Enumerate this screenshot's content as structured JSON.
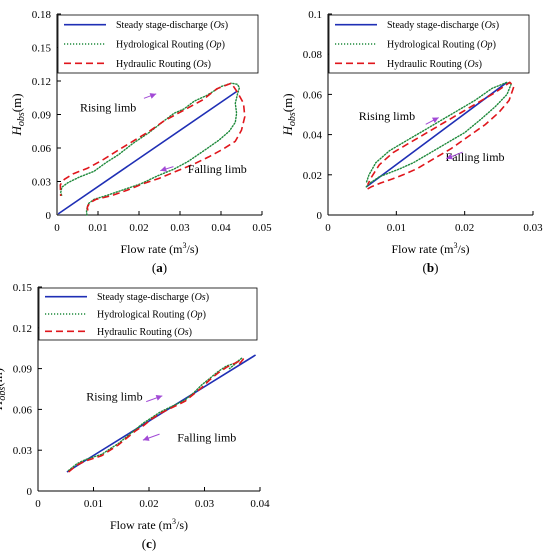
{
  "chart_data": [
    {
      "panel_label": "(a)",
      "type": "line",
      "xlabel": "Flow rate (m³/s)",
      "ylabel": "Hobs(m)",
      "xlim": [
        0,
        0.05
      ],
      "ylim": [
        0,
        0.18
      ],
      "xticks": [
        "0",
        "0.01",
        "0.02",
        "0.03",
        "0.04",
        "0.05"
      ],
      "yticks": [
        "0",
        "0.03",
        "0.06",
        "0.09",
        "0.12",
        "0.15",
        "0.18"
      ],
      "legend_position": "top-left",
      "annotations": [
        {
          "text": "Rising limb",
          "x": 0.0056,
          "y": 0.0925
        },
        {
          "text": "Falling limb",
          "x": 0.0319,
          "y": 0.0374
        },
        {
          "arrow": "up",
          "x1": 0.0212,
          "y1": 0.1045,
          "x2": 0.0242,
          "y2": 0.1085
        },
        {
          "arrow": "down",
          "x1": 0.0284,
          "y1": 0.0433,
          "x2": 0.0252,
          "y2": 0.0397
        }
      ],
      "series": [
        {
          "name": "Steady stage-discharge (Os)",
          "style": "solid",
          "color": "#1f2fb5",
          "x": [
            0.0003,
            0.044
          ],
          "y": [
            0.001,
            0.111
          ]
        },
        {
          "name": "Hydrological Routing (Op)",
          "style": "dotted",
          "color": "#1f8a3c",
          "x": [
            0.0073,
            0.0072,
            0.0076,
            0.009,
            0.0125,
            0.0165,
            0.0205,
            0.0245,
            0.0285,
            0.032,
            0.036,
            0.0395,
            0.042,
            0.0435,
            0.0438,
            0.0435,
            0.044,
            0.0445,
            0.044,
            0.0425,
            0.04,
            0.0365,
            0.0335,
            0.031,
            0.0285,
            0.026,
            0.0225,
            0.0185,
            0.015,
            0.012,
            0.009,
            0.0055,
            0.0027,
            0.0012,
            0.0009,
            0.0012
          ],
          "y": [
            0.0,
            0.004,
            0.01,
            0.014,
            0.018,
            0.023,
            0.028,
            0.035,
            0.041,
            0.048,
            0.058,
            0.067,
            0.075,
            0.083,
            0.091,
            0.1,
            0.108,
            0.114,
            0.117,
            0.118,
            0.115,
            0.107,
            0.102,
            0.095,
            0.091,
            0.084,
            0.074,
            0.064,
            0.054,
            0.047,
            0.039,
            0.034,
            0.029,
            0.025,
            0.02,
            0.017
          ]
        },
        {
          "name": "Hydraulic Routing (Os)",
          "style": "dashed",
          "color": "#e0161c",
          "x": [
            0.0075,
            0.0074,
            0.008,
            0.0095,
            0.013,
            0.017,
            0.021,
            0.025,
            0.029,
            0.033,
            0.037,
            0.0405,
            0.0435,
            0.045,
            0.0458,
            0.0455,
            0.044,
            0.0425,
            0.039,
            0.0355,
            0.032,
            0.029,
            0.026,
            0.0225,
            0.0185,
            0.0145,
            0.011,
            0.0075,
            0.004,
            0.0018,
            0.0008,
            0.0009
          ],
          "y": [
            0.004,
            0.007,
            0.011,
            0.014,
            0.017,
            0.022,
            0.028,
            0.033,
            0.039,
            0.045,
            0.052,
            0.059,
            0.066,
            0.076,
            0.088,
            0.1,
            0.11,
            0.118,
            0.113,
            0.103,
            0.096,
            0.09,
            0.084,
            0.075,
            0.066,
            0.057,
            0.049,
            0.042,
            0.037,
            0.032,
            0.027,
            0.017
          ]
        }
      ]
    },
    {
      "panel_label": "(b)",
      "type": "line",
      "xlabel": "Flow rate (m³/s)",
      "ylabel": "Hobs(m)",
      "xlim": [
        0,
        0.03
      ],
      "ylim": [
        0,
        0.1
      ],
      "xticks": [
        "0",
        "0.01",
        "0.02",
        "0.03"
      ],
      "yticks": [
        "0",
        "0.02",
        "0.04",
        "0.06",
        "0.08",
        "0.1"
      ],
      "legend_position": "top-left",
      "annotations": [
        {
          "text": "Rising limb",
          "x": 0.0045,
          "y": 0.0473
        },
        {
          "text": "Falling limb",
          "x": 0.0172,
          "y": 0.0269
        },
        {
          "arrow": "up",
          "x1": 0.0143,
          "y1": 0.0451,
          "x2": 0.0162,
          "y2": 0.0485
        },
        {
          "arrow": "down",
          "x1": 0.0197,
          "y1": 0.0313,
          "x2": 0.0173,
          "y2": 0.028
        }
      ],
      "series": [
        {
          "name": "Steady stage-discharge (Os)",
          "style": "solid",
          "color": "#1f2fb5",
          "x": [
            0.0056,
            0.0262
          ],
          "y": [
            0.014,
            0.066
          ]
        },
        {
          "name": "Hydrological Routing (Op)",
          "style": "dotted",
          "color": "#1f8a3c",
          "x": [
            0.0056,
            0.0062,
            0.0075,
            0.009,
            0.0105,
            0.0125,
            0.015,
            0.0175,
            0.02,
            0.0225,
            0.0245,
            0.0262,
            0.0268,
            0.0262,
            0.024,
            0.0215,
            0.019,
            0.0165,
            0.014,
            0.0115,
            0.009,
            0.007,
            0.006,
            0.0056
          ],
          "y": [
            0.014,
            0.016,
            0.019,
            0.021,
            0.023,
            0.026,
            0.031,
            0.036,
            0.041,
            0.048,
            0.054,
            0.06,
            0.065,
            0.066,
            0.063,
            0.057,
            0.052,
            0.047,
            0.042,
            0.037,
            0.032,
            0.026,
            0.02,
            0.016
          ]
        },
        {
          "name": "Hydraulic Routing (Os)",
          "style": "dashed",
          "color": "#e0161c",
          "x": [
            0.0058,
            0.0063,
            0.0078,
            0.0095,
            0.011,
            0.013,
            0.0155,
            0.018,
            0.0205,
            0.023,
            0.025,
            0.0265,
            0.0272,
            0.0266,
            0.0245,
            0.022,
            0.0195,
            0.017,
            0.0145,
            0.012,
            0.0095,
            0.0075,
            0.0064,
            0.0058
          ],
          "y": [
            0.013,
            0.014,
            0.016,
            0.018,
            0.02,
            0.023,
            0.028,
            0.033,
            0.039,
            0.045,
            0.051,
            0.057,
            0.064,
            0.066,
            0.061,
            0.056,
            0.051,
            0.046,
            0.041,
            0.036,
            0.031,
            0.025,
            0.019,
            0.015
          ]
        }
      ]
    },
    {
      "panel_label": "(c)",
      "type": "line",
      "xlabel": "Flow rate (m³/s)",
      "ylabel": "Hobs(m)",
      "xlim": [
        0,
        0.04
      ],
      "ylim": [
        0,
        0.15
      ],
      "xticks": [
        "0",
        "0.01",
        "0.02",
        "0.03",
        "0.04"
      ],
      "yticks": [
        "0",
        "0.03",
        "0.06",
        "0.09",
        "0.12",
        "0.15"
      ],
      "legend_position": "top-left",
      "annotations": [
        {
          "text": "Rising limb",
          "x": 0.0087,
          "y": 0.0665
        },
        {
          "text": "Falling limb",
          "x": 0.0251,
          "y": 0.0363
        },
        {
          "arrow": "up",
          "x1": 0.0195,
          "y1": 0.0657,
          "x2": 0.0224,
          "y2": 0.07
        },
        {
          "arrow": "down",
          "x1": 0.0219,
          "y1": 0.0418,
          "x2": 0.0189,
          "y2": 0.0374
        }
      ],
      "series": [
        {
          "name": "Steady stage-discharge (Os)",
          "style": "solid",
          "color": "#1f2fb5",
          "x": [
            0.0052,
            0.0392
          ],
          "y": [
            0.014,
            0.1
          ]
        },
        {
          "name": "Hydrological Routing (Op)",
          "style": "dotted",
          "color": "#1f8a3c",
          "x": [
            0.0055,
            0.007,
            0.0085,
            0.01,
            0.0115,
            0.013,
            0.0145,
            0.016,
            0.0175,
            0.019,
            0.0205,
            0.022,
            0.0235,
            0.025,
            0.0265,
            0.028,
            0.0295,
            0.031,
            0.0325,
            0.034,
            0.0355,
            0.0365,
            0.0368,
            0.036,
            0.0345
          ],
          "y": [
            0.015,
            0.02,
            0.023,
            0.025,
            0.027,
            0.031,
            0.035,
            0.04,
            0.045,
            0.05,
            0.054,
            0.058,
            0.061,
            0.064,
            0.067,
            0.072,
            0.078,
            0.083,
            0.088,
            0.092,
            0.094,
            0.097,
            0.098,
            0.095,
            0.09
          ]
        },
        {
          "name": "Hydraulic Routing (Os)",
          "style": "dashed",
          "color": "#e0161c",
          "x": [
            0.0055,
            0.007,
            0.0085,
            0.01,
            0.0115,
            0.013,
            0.0145,
            0.016,
            0.0175,
            0.019,
            0.0205,
            0.022,
            0.0235,
            0.025,
            0.0265,
            0.028,
            0.0295,
            0.031,
            0.0325,
            0.034,
            0.0355,
            0.0365,
            0.037,
            0.0362
          ],
          "y": [
            0.014,
            0.019,
            0.022,
            0.024,
            0.026,
            0.03,
            0.034,
            0.039,
            0.044,
            0.048,
            0.053,
            0.057,
            0.06,
            0.063,
            0.066,
            0.071,
            0.076,
            0.082,
            0.087,
            0.091,
            0.094,
            0.096,
            0.097,
            0.093
          ]
        }
      ]
    }
  ]
}
